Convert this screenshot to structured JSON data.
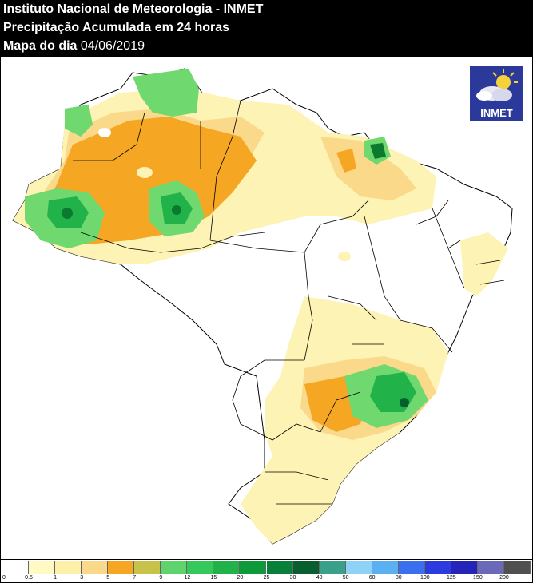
{
  "header": {
    "institute": "Instituto Nacional de Meteorologia - INMET",
    "product": "Precipitação Acumulada em 24 horas",
    "date_label": "Mapa do dia",
    "date_value": "04/06/2019"
  },
  "logo": {
    "text": "INMET"
  },
  "legend": {
    "labels": [
      "0",
      "0.5",
      "1",
      "3",
      "5",
      "7",
      "9",
      "12",
      "15",
      "20",
      "25",
      "30",
      "40",
      "50",
      "60",
      "80",
      "100",
      "125",
      "150",
      "200"
    ],
    "colors": [
      "#ffffff",
      "#fff9c4",
      "#fdf0a8",
      "#fbd98a",
      "#f5a623",
      "#c7c24a",
      "#5fd36c",
      "#35c85a",
      "#22b24a",
      "#0c9a3a",
      "#08803a",
      "#075e2e",
      "#3aa08a",
      "#8ed3f5",
      "#5ab0f0",
      "#3a70ef",
      "#2c3be0",
      "#2424b8",
      "#6a6ab8",
      "#505050"
    ]
  },
  "map": {
    "regions": [
      {
        "name": "green-core",
        "color": "#0c7a2e"
      },
      {
        "name": "green",
        "color": "#3ec257"
      },
      {
        "name": "light-green",
        "color": "#6fd86f"
      },
      {
        "name": "orange",
        "color": "#f5a623"
      },
      {
        "name": "light-orange",
        "color": "#fbd98a"
      },
      {
        "name": "pale-yellow",
        "color": "#fdf3b4"
      }
    ]
  }
}
